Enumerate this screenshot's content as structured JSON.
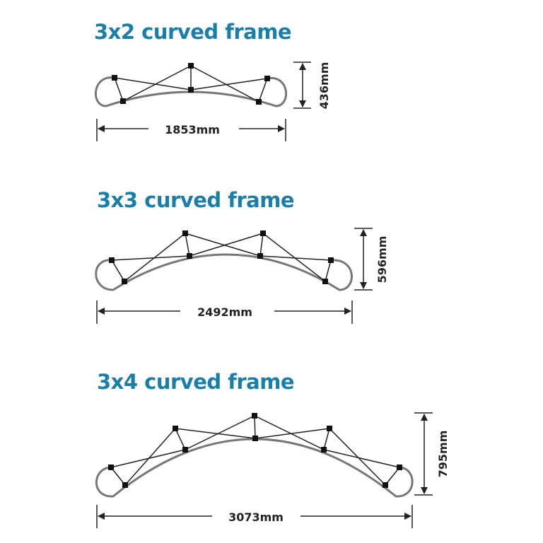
{
  "frames": [
    {
      "title": "3x2 curved frame",
      "width_label": "1853mm",
      "height_label": "436mm"
    },
    {
      "title": "3x3 curved frame",
      "width_label": "2492mm",
      "height_label": "596mm"
    },
    {
      "title": "3x4 curved frame",
      "width_label": "3073mm",
      "height_label": "795mm"
    }
  ],
  "colors": {
    "title": "#1a7fa8",
    "frame_curve": "#777777",
    "struts": "#222222"
  }
}
